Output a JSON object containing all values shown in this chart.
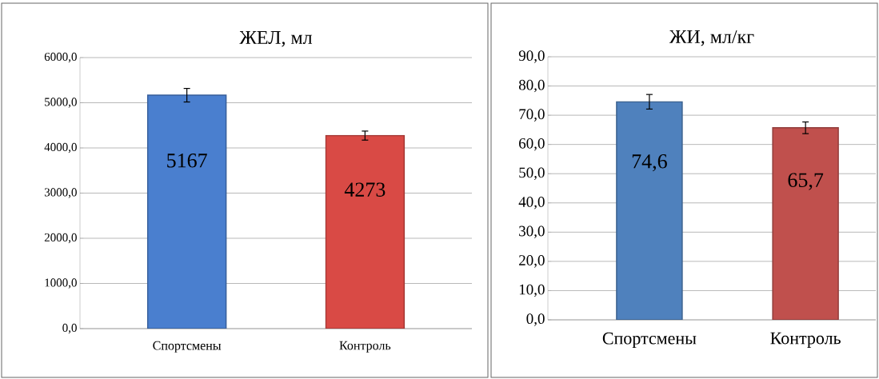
{
  "chart_data": [
    {
      "type": "bar",
      "title": "ЖЕЛ, мл",
      "categories": [
        "Спортсмены",
        "Контроль"
      ],
      "values": [
        5167,
        4273
      ],
      "colors": [
        "#4a7fcf",
        "#d94a45"
      ],
      "errors": [
        150,
        100
      ],
      "value_labels": [
        "5167",
        "4273"
      ],
      "ylim": [
        0,
        6000
      ],
      "yticks": [
        {
          "value": 0,
          "label": "0,0"
        },
        {
          "value": 1000,
          "label": "1000,0"
        },
        {
          "value": 2000,
          "label": "2000,0"
        },
        {
          "value": 3000,
          "label": "3000,0"
        },
        {
          "value": 4000,
          "label": "4000,0"
        },
        {
          "value": 5000,
          "label": "5000,0"
        },
        {
          "value": 6000,
          "label": "6000,0"
        }
      ],
      "grid": "y"
    },
    {
      "type": "bar",
      "title": "ЖИ, мл/кг",
      "categories": [
        "Спортсмены",
        "Контроль"
      ],
      "values": [
        74.6,
        65.7
      ],
      "colors": [
        "#4f81bd",
        "#c0504d"
      ],
      "errors": [
        2.5,
        2
      ],
      "value_labels": [
        "74,6",
        "65,7"
      ],
      "ylim": [
        0,
        90
      ],
      "yticks": [
        {
          "value": 0,
          "label": "0,0"
        },
        {
          "value": 10,
          "label": "10,0"
        },
        {
          "value": 20,
          "label": "20,0"
        },
        {
          "value": 30,
          "label": "30,0"
        },
        {
          "value": 40,
          "label": "40,0"
        },
        {
          "value": 50,
          "label": "50,0"
        },
        {
          "value": 60,
          "label": "60,0"
        },
        {
          "value": 70,
          "label": "70,0"
        },
        {
          "value": 80,
          "label": "80,0"
        },
        {
          "value": 90,
          "label": "90,0"
        }
      ],
      "grid": "y"
    }
  ]
}
